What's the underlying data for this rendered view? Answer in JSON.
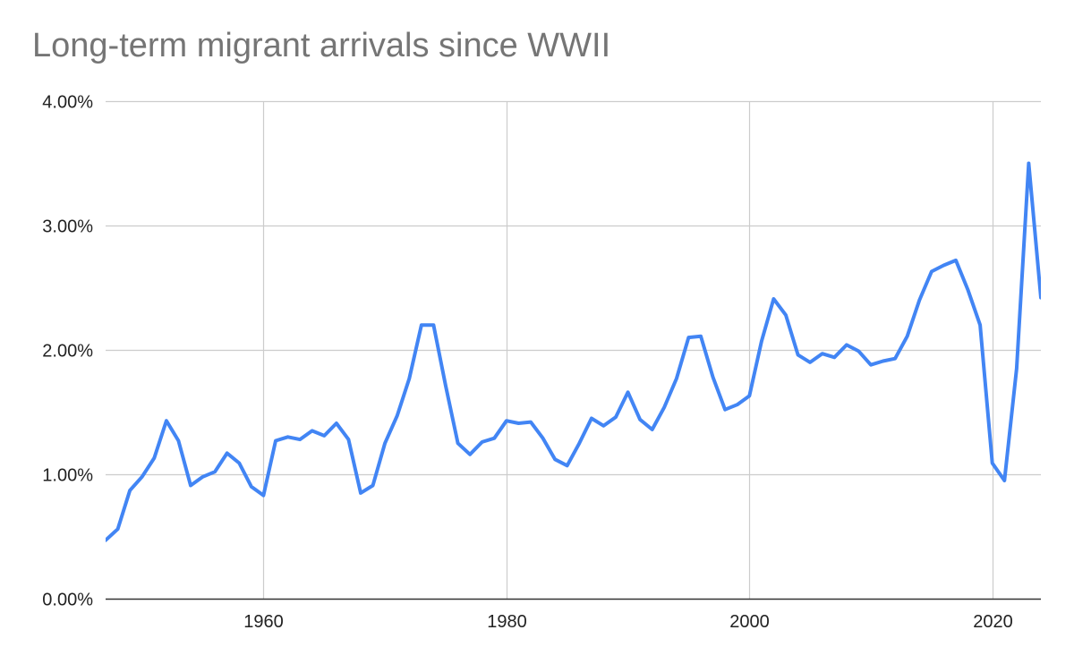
{
  "chart_data": {
    "type": "line",
    "title": "Long-term migrant arrivals since WWII",
    "xlabel": "",
    "ylabel": "",
    "xlim": [
      1947,
      2024
    ],
    "ylim": [
      0,
      0.04
    ],
    "x_ticks": [
      {
        "value": 1960,
        "label": "1960"
      },
      {
        "value": 1980,
        "label": "1980"
      },
      {
        "value": 2000,
        "label": "2000"
      },
      {
        "value": 2020,
        "label": "2020"
      }
    ],
    "y_ticks": [
      {
        "value": 0.0,
        "label": "0.00%"
      },
      {
        "value": 0.01,
        "label": "1.00%"
      },
      {
        "value": 0.02,
        "label": "2.00%"
      },
      {
        "value": 0.03,
        "label": "3.00%"
      },
      {
        "value": 0.04,
        "label": "4.00%"
      }
    ],
    "grid": true,
    "legend": "none",
    "colors": {
      "line": "#4285f4",
      "grid": "#cccccc",
      "axis": "#333333"
    },
    "series": [
      {
        "x": [
          1947,
          1948,
          1949,
          1950,
          1951,
          1952,
          1953,
          1954,
          1955,
          1956,
          1957,
          1958,
          1959,
          1960,
          1961,
          1962,
          1963,
          1964,
          1965,
          1966,
          1967,
          1968,
          1969,
          1970,
          1971,
          1972,
          1973,
          1974,
          1975,
          1976,
          1977,
          1978,
          1979,
          1980,
          1981,
          1982,
          1983,
          1984,
          1985,
          1986,
          1987,
          1988,
          1989,
          1990,
          1991,
          1992,
          1993,
          1994,
          1995,
          1996,
          1997,
          1998,
          1999,
          2000,
          2001,
          2002,
          2003,
          2004,
          2005,
          2006,
          2007,
          2008,
          2009,
          2010,
          2011,
          2012,
          2013,
          2014,
          2015,
          2016,
          2017,
          2018,
          2019,
          2020,
          2021,
          2022,
          2023,
          2024
        ],
        "values": [
          0.0047,
          0.0056,
          0.0087,
          0.0098,
          0.0113,
          0.0143,
          0.0127,
          0.0091,
          0.0098,
          0.0102,
          0.0117,
          0.0109,
          0.009,
          0.0083,
          0.0127,
          0.013,
          0.0128,
          0.0135,
          0.0131,
          0.0141,
          0.0128,
          0.0085,
          0.0091,
          0.0125,
          0.0147,
          0.0177,
          0.022,
          0.022,
          0.0171,
          0.0125,
          0.0116,
          0.0126,
          0.0129,
          0.0143,
          0.0141,
          0.0142,
          0.0129,
          0.0112,
          0.0107,
          0.0125,
          0.0145,
          0.0139,
          0.0146,
          0.0166,
          0.0144,
          0.0136,
          0.0154,
          0.0177,
          0.021,
          0.0211,
          0.0178,
          0.0152,
          0.0156,
          0.0163,
          0.0207,
          0.0241,
          0.0228,
          0.0196,
          0.019,
          0.0197,
          0.0194,
          0.0204,
          0.0199,
          0.0188,
          0.0191,
          0.0193,
          0.0211,
          0.024,
          0.0263,
          0.0268,
          0.0272,
          0.0248,
          0.022,
          0.0109,
          0.0095,
          0.0185,
          0.035,
          0.0242
        ]
      }
    ]
  }
}
